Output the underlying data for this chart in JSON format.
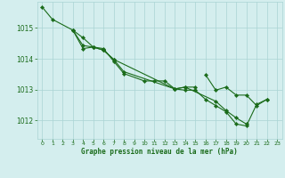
{
  "title": "Graphe pression niveau de la mer (hPa)",
  "background_color": "#d4eeee",
  "grid_color": "#aad4d4",
  "line_color": "#1a6b1a",
  "marker_color": "#1a6b1a",
  "tick_color": "#1a6b1a",
  "xlim": [
    -0.5,
    23.5
  ],
  "ylim": [
    1011.4,
    1015.85
  ],
  "yticks": [
    1012,
    1013,
    1014,
    1015
  ],
  "xticks": [
    0,
    1,
    2,
    3,
    4,
    5,
    6,
    7,
    8,
    9,
    10,
    11,
    12,
    13,
    14,
    15,
    16,
    17,
    18,
    19,
    20,
    21,
    22,
    23
  ],
  "lines_data": {
    "line1": {
      "x": [
        0,
        1,
        3,
        4,
        5,
        6,
        7,
        8,
        10,
        11,
        12,
        13,
        14,
        15
      ],
      "y": [
        1015.68,
        1015.28,
        1014.93,
        1014.68,
        1014.38,
        1014.33,
        1013.92,
        1013.52,
        1013.28,
        1013.28,
        1013.28,
        1013.02,
        1013.08,
        1013.08
      ]
    },
    "line2": {
      "x": [
        3,
        4,
        5,
        6,
        7,
        13,
        14,
        17,
        18,
        19,
        20
      ],
      "y": [
        1014.93,
        1014.33,
        1014.38,
        1014.28,
        1013.98,
        1013.02,
        1013.08,
        1012.62,
        1012.32,
        1012.08,
        1011.88
      ]
    },
    "line3": {
      "x": [
        3,
        4,
        5,
        6,
        7,
        8,
        13,
        14,
        15,
        16,
        17,
        18,
        19,
        20,
        21,
        22
      ],
      "y": [
        1014.93,
        1014.43,
        1014.38,
        1014.28,
        1013.98,
        1013.58,
        1013.02,
        1012.98,
        1012.98,
        1012.68,
        1012.48,
        1012.28,
        1011.88,
        1011.82,
        1012.52,
        1012.68
      ]
    },
    "line4": {
      "x": [
        16,
        17,
        18,
        19,
        20,
        21,
        22
      ],
      "y": [
        1013.48,
        1012.98,
        1013.08,
        1012.82,
        1012.82,
        1012.48,
        1012.68
      ]
    }
  }
}
